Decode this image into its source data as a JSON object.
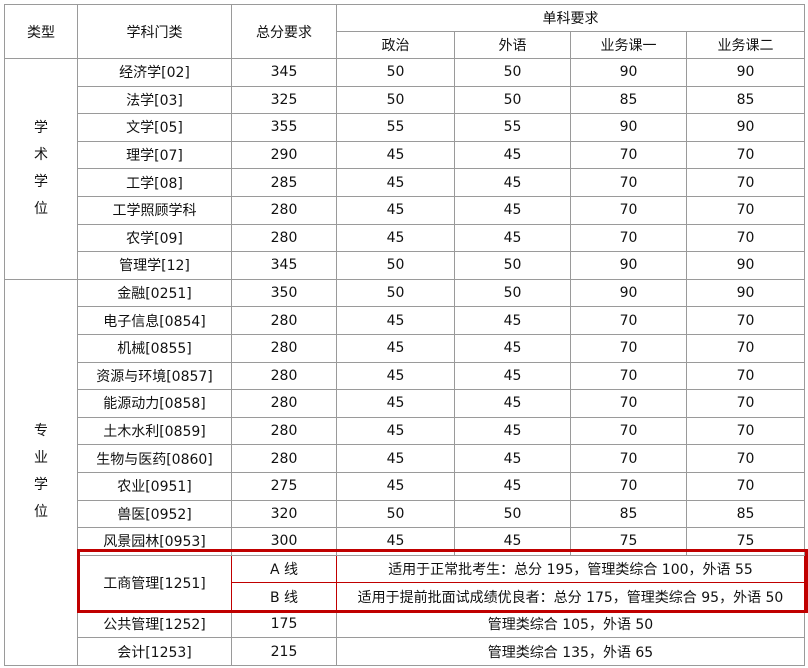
{
  "header": {
    "type": "类型",
    "discipline": "学科门类",
    "total": "总分要求",
    "single": "单科要求",
    "subjects": [
      "政治",
      "外语",
      "业务课一",
      "业务课二"
    ]
  },
  "academic": {
    "label": [
      "学",
      "术",
      "学",
      "位"
    ],
    "rows": [
      [
        "经济学[02]",
        "345",
        "50",
        "50",
        "90",
        "90"
      ],
      [
        "法学[03]",
        "325",
        "50",
        "50",
        "85",
        "85"
      ],
      [
        "文学[05]",
        "355",
        "55",
        "55",
        "90",
        "90"
      ],
      [
        "理学[07]",
        "290",
        "45",
        "45",
        "70",
        "70"
      ],
      [
        "工学[08]",
        "285",
        "45",
        "45",
        "70",
        "70"
      ],
      [
        "工学照顾学科",
        "280",
        "45",
        "45",
        "70",
        "70"
      ],
      [
        "农学[09]",
        "280",
        "45",
        "45",
        "70",
        "70"
      ],
      [
        "管理学[12]",
        "345",
        "50",
        "50",
        "90",
        "90"
      ]
    ]
  },
  "professional": {
    "label": [
      "专",
      "业",
      "学",
      "位"
    ],
    "rows": [
      [
        "金融[0251]",
        "350",
        "50",
        "50",
        "90",
        "90"
      ],
      [
        "电子信息[0854]",
        "280",
        "45",
        "45",
        "70",
        "70"
      ],
      [
        "机械[0855]",
        "280",
        "45",
        "45",
        "70",
        "70"
      ],
      [
        "资源与环境[0857]",
        "280",
        "45",
        "45",
        "70",
        "70"
      ],
      [
        "能源动力[0858]",
        "280",
        "45",
        "45",
        "70",
        "70"
      ],
      [
        "土木水利[0859]",
        "280",
        "45",
        "45",
        "70",
        "70"
      ],
      [
        "生物与医药[0860]",
        "280",
        "45",
        "45",
        "70",
        "70"
      ],
      [
        "农业[0951]",
        "275",
        "45",
        "45",
        "70",
        "70"
      ],
      [
        "兽医[0952]",
        "320",
        "50",
        "50",
        "85",
        "85"
      ],
      [
        "风景园林[0953]",
        "300",
        "45",
        "45",
        "75",
        "75"
      ]
    ],
    "mba": {
      "name": "工商管理[1251]",
      "lines": [
        {
          "label": "A 线",
          "text": "适用于正常批考生：总分 195，管理类综合 100，外语 55"
        },
        {
          "label": "B 线",
          "text": "适用于提前批面试成绩优良者：总分 175，管理类综合 95，外语 50"
        }
      ]
    },
    "others": [
      {
        "name": "公共管理[1252]",
        "total": "175",
        "text": "管理类综合 105，外语 50"
      },
      {
        "name": "会计[1253]",
        "total": "215",
        "text": "管理类综合 135，外语 65"
      }
    ]
  },
  "colors": {
    "border": "#9a9a9a",
    "highlight": "#c00000"
  }
}
